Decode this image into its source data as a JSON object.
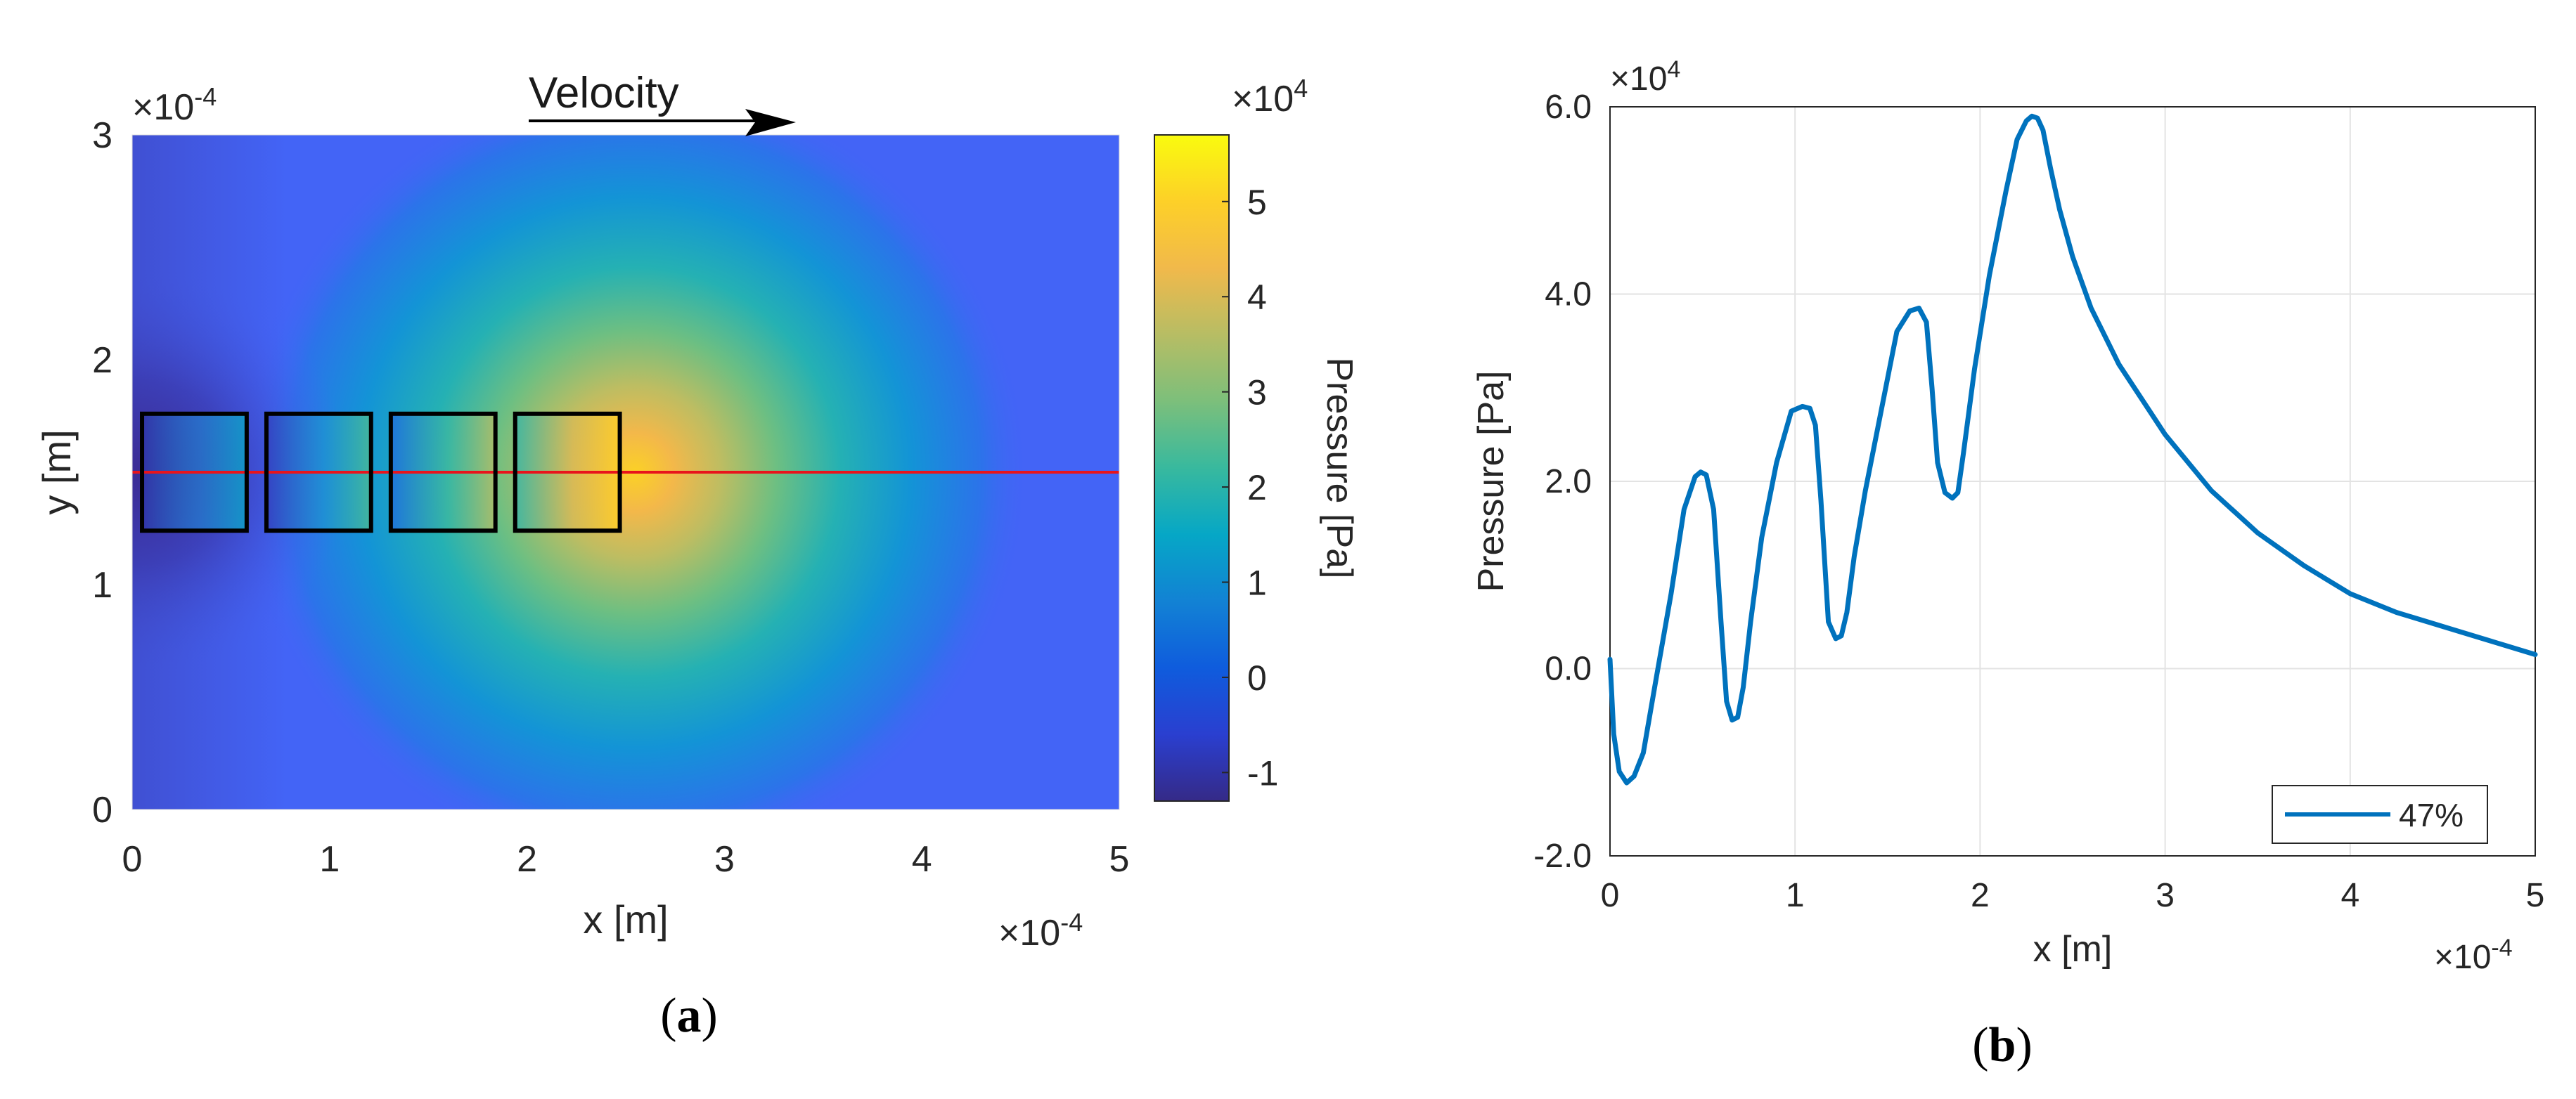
{
  "panels": [
    {
      "caption_letter": "a",
      "chart_data": {
        "type": "heatmap",
        "annotation": "Velocity",
        "xlabel": "x [m]",
        "ylabel": "y [m]",
        "x_multiplier": "×10^-4",
        "y_multiplier": "×10^-4",
        "xlim": [
          0,
          5
        ],
        "ylim": [
          0,
          3
        ],
        "x_ticks": [
          "0",
          "1",
          "2",
          "3",
          "4",
          "5"
        ],
        "y_ticks": [
          "0",
          "1",
          "2",
          "3"
        ],
        "colorbar": {
          "label": "Pressure [Pa]",
          "multiplier": "×10^4",
          "range": [
            -1.3,
            5.7
          ],
          "ticks": [
            "-1",
            "0",
            "1",
            "2",
            "3",
            "4",
            "5"
          ]
        },
        "line_y": 1.5,
        "line_color": "#e8141c",
        "boxes": [
          {
            "x0": 0.05,
            "x1": 0.58,
            "y0": 1.24,
            "y1": 1.76
          },
          {
            "x0": 0.68,
            "x1": 1.21,
            "y0": 1.24,
            "y1": 1.76
          },
          {
            "x0": 1.31,
            "x1": 1.84,
            "y0": 1.24,
            "y1": 1.76
          },
          {
            "x0": 1.94,
            "x1": 2.47,
            "y0": 1.24,
            "y1": 1.76
          }
        ]
      }
    },
    {
      "caption_letter": "b",
      "chart_data": {
        "type": "line",
        "xlabel": "x [m]",
        "ylabel": "Pressure [Pa]",
        "x_multiplier": "×10^-4",
        "y_multiplier": "×10^4",
        "xlim": [
          0,
          5
        ],
        "ylim": [
          -2,
          6
        ],
        "x_ticks": [
          "0",
          "1",
          "2",
          "3",
          "4",
          "5"
        ],
        "y_ticks": [
          "-2.0",
          "0.0",
          "2.0",
          "4.0",
          "6.0"
        ],
        "grid": true,
        "legend_position": "bottom-right",
        "series": [
          {
            "name": "47%",
            "color": "#0072bd",
            "x": [
              0,
              0.02,
              0.05,
              0.09,
              0.13,
              0.18,
              0.25,
              0.33,
              0.4,
              0.46,
              0.49,
              0.52,
              0.56,
              0.6,
              0.63,
              0.66,
              0.69,
              0.72,
              0.76,
              0.82,
              0.9,
              0.98,
              1.04,
              1.08,
              1.11,
              1.14,
              1.18,
              1.22,
              1.25,
              1.28,
              1.32,
              1.38,
              1.46,
              1.55,
              1.62,
              1.67,
              1.71,
              1.74,
              1.77,
              1.81,
              1.85,
              1.88,
              1.91,
              1.97,
              2.05,
              2.14,
              2.2,
              2.25,
              2.28,
              2.31,
              2.34,
              2.38,
              2.43,
              2.5,
              2.6,
              2.75,
              3.0,
              3.25,
              3.5,
              3.75,
              4.0,
              4.25,
              4.5,
              4.75,
              5.0
            ],
            "y": [
              0.1,
              -0.7,
              -1.1,
              -1.22,
              -1.15,
              -0.9,
              -0.1,
              0.8,
              1.7,
              2.05,
              2.1,
              2.07,
              1.7,
              0.5,
              -0.35,
              -0.55,
              -0.52,
              -0.2,
              0.5,
              1.4,
              2.2,
              2.75,
              2.8,
              2.78,
              2.6,
              1.8,
              0.5,
              0.32,
              0.35,
              0.6,
              1.2,
              1.9,
              2.7,
              3.6,
              3.82,
              3.85,
              3.7,
              3.0,
              2.2,
              1.88,
              1.82,
              1.88,
              2.3,
              3.2,
              4.2,
              5.1,
              5.65,
              5.85,
              5.9,
              5.88,
              5.75,
              5.35,
              4.9,
              4.4,
              3.85,
              3.25,
              2.5,
              1.9,
              1.45,
              1.1,
              0.8,
              0.6,
              0.45,
              0.3,
              0.15
            ]
          }
        ]
      }
    }
  ]
}
